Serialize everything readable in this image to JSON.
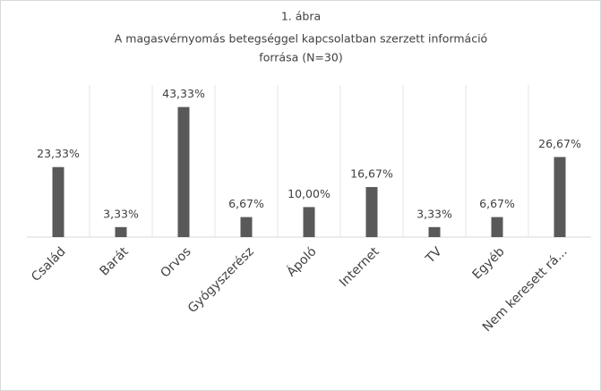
{
  "chart_data": {
    "type": "bar",
    "title": [
      "1. ábra",
      "A magasvérnyomás betegséggel kapcsolatban szerzett információ",
      "forrása (N=30)"
    ],
    "categories": [
      "Család",
      "Barát",
      "Orvos",
      "Gyógyszerész",
      "Ápoló",
      "Internet",
      "TV",
      "Egyéb",
      "Nem keresett rá..."
    ],
    "values": [
      23.33,
      3.33,
      43.33,
      6.67,
      10.0,
      16.67,
      3.33,
      6.67,
      26.67
    ],
    "value_labels": [
      "23,33%",
      "3,33%",
      "43,33%",
      "6,67%",
      "10,00%",
      "16,67%",
      "3,33%",
      "6,67%",
      "26,67%"
    ],
    "color": "#595959",
    "ylim": [
      0,
      45
    ]
  }
}
